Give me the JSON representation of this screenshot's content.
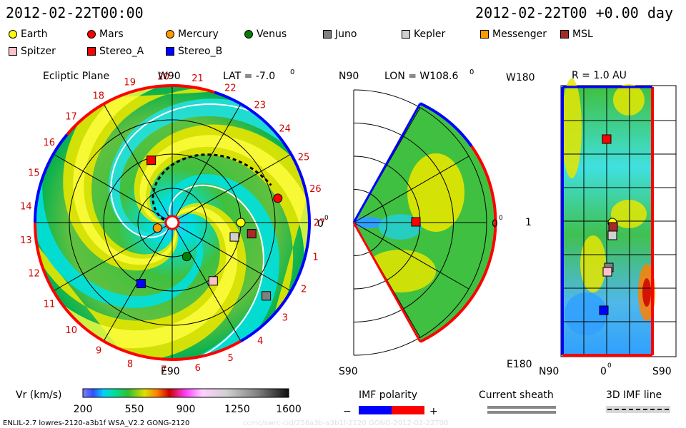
{
  "header": {
    "left": "2012-02-22T00:00",
    "right": "2012-02-22T00 +0.00 day"
  },
  "legend": [
    {
      "name": "Earth",
      "color": "#ffff00",
      "shape": "circle"
    },
    {
      "name": "Mars",
      "color": "#ff0000",
      "shape": "circle"
    },
    {
      "name": "Mercury",
      "color": "#ff9900",
      "shape": "circle"
    },
    {
      "name": "Venus",
      "color": "#008000",
      "shape": "circle"
    },
    {
      "name": "Juno",
      "color": "#808080",
      "shape": "square"
    },
    {
      "name": "Kepler",
      "color": "#d0d0d0",
      "shape": "square"
    },
    {
      "name": "Messenger",
      "color": "#ff9900",
      "shape": "square"
    },
    {
      "name": "MSL",
      "color": "#a52a2a",
      "shape": "square"
    },
    {
      "name": "Spitzer",
      "color": "#ffc0cb",
      "shape": "square"
    },
    {
      "name": "Stereo_A",
      "color": "#ff0000",
      "shape": "square"
    },
    {
      "name": "Stereo_B",
      "color": "#0000ff",
      "shape": "square"
    }
  ],
  "panels": {
    "ecliptic": {
      "title": "Ecliptic Plane",
      "lat": "LAT = -7.0",
      "deg": "0",
      "w90": "W90",
      "e90": "E90",
      "zero": "0",
      "zero_deg": "0"
    },
    "meridional": {
      "n90": "N90",
      "s90": "S90",
      "lon": "LON = W108.6",
      "deg": "0",
      "zero": "0",
      "zero_deg": "0"
    },
    "radial": {
      "title": "R = 1.0 AU",
      "w180": "W180",
      "e180": "E180",
      "one": "1",
      "n90": "N90",
      "zero": "0",
      "zero_deg": "0",
      "s90": "S90"
    }
  },
  "carrington_labels": [
    "1",
    "2",
    "3",
    "4",
    "5",
    "6",
    "7",
    "8",
    "9",
    "10",
    "11",
    "12",
    "13",
    "14",
    "15",
    "16",
    "17",
    "18",
    "19",
    "20",
    "21",
    "22",
    "23",
    "24",
    "25",
    "26",
    "27"
  ],
  "colorbar": {
    "label": "Vr (km/s)",
    "ticks": [
      "200",
      "550",
      "900",
      "1250",
      "1600"
    ],
    "min": 200,
    "max": 1600
  },
  "imf_polarity": {
    "title": "IMF polarity",
    "minus": "−",
    "plus": "+",
    "neg_color": "#0000ff",
    "pos_color": "#ff0000"
  },
  "current_sheath": {
    "title": "Current sheath"
  },
  "imf_line": {
    "title": "3D IMF line"
  },
  "footer": {
    "text": "ENLIL-2.7 lowres-2120-a3b1f WSA_V2.2 GONG-2120",
    "watermark": "ccmc/swrc-cid/256a3b-a3b1f-2120 GONG-2012-02-22T00"
  },
  "bodies": [
    {
      "name": "Earth",
      "lon_deg": 0,
      "r_au": 1.0,
      "lat": 0
    },
    {
      "name": "Mars",
      "lon_deg": 13,
      "r_au": 1.58,
      "lat": 0
    },
    {
      "name": "Mercury",
      "lon_deg": 200,
      "r_au": 0.23,
      "lat": 0
    },
    {
      "name": "Venus",
      "lon_deg": -67,
      "r_au": 0.54,
      "lat": 0
    },
    {
      "name": "Juno",
      "lon_deg": -38,
      "r_au": 1.74,
      "lat": 0
    },
    {
      "name": "Kepler",
      "lon_deg": -13,
      "r_au": 0.93,
      "lat": 0
    },
    {
      "name": "MSL",
      "lon_deg": -8,
      "r_au": 1.17,
      "lat": 0
    },
    {
      "name": "Spitzer",
      "lon_deg": -55,
      "r_au": 1.04,
      "lat": 0
    },
    {
      "name": "Stereo_A",
      "lon_deg": 108.6,
      "r_au": 0.96,
      "lat": -7
    },
    {
      "name": "Stereo_B",
      "lon_deg": -117,
      "r_au": 1.0,
      "lat": 0
    }
  ]
}
